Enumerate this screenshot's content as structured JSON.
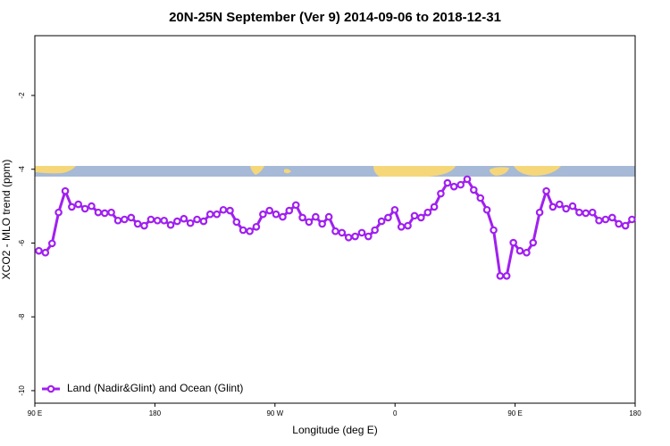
{
  "chart_data": {
    "type": "line",
    "title": "20N-25N September (Ver 9)   2014-09-06 to 2018-12-31",
    "x_label": "Longitude (deg E)",
    "y_label": "XCO2 - MLO trend (ppm)",
    "xlim": [
      90,
      540
    ],
    "ylim": [
      -10.34,
      -0.38
    ],
    "xticks": [
      {
        "value": 90,
        "label": "90 E"
      },
      180,
      {
        "value": 270,
        "label": "90 W"
      },
      {
        "value": 360,
        "label": "0"
      },
      {
        "value": 450,
        "label": "90 E"
      },
      {
        "value": 540,
        "label": "180"
      }
    ],
    "yticks": [
      -10,
      -8,
      -6,
      -4,
      -2
    ],
    "legend": "bottom-left",
    "x": [
      93,
      97.9,
      102.9,
      107.8,
      112.8,
      117.7,
      122.6,
      127.6,
      132.5,
      137.5,
      142.4,
      147.3,
      152.3,
      157.2,
      162.2,
      167.1,
      172,
      177,
      181.9,
      186.9,
      191.8,
      196.7,
      201.7,
      206.6,
      211.6,
      216.5,
      221.4,
      226.4,
      231.3,
      236.3,
      241.2,
      246.1,
      251.1,
      256,
      261,
      265.9,
      270.8,
      275.8,
      280.7,
      285.7,
      290.6,
      295.5,
      300.5,
      305.4,
      310.4,
      315.3,
      320.2,
      325.2,
      330.1,
      335.1,
      340,
      344.9,
      349.9,
      354.8,
      359.8,
      364.7,
      369.6,
      374.6,
      379.5,
      384.5,
      389.4,
      394.3,
      399.3,
      404.2,
      409.2,
      414.1,
      419,
      424,
      428.9,
      433.9,
      438.8,
      443.7,
      448.7,
      453.6,
      458.6,
      463.5,
      468.4,
      473.4,
      478.3,
      483.3,
      488.2,
      493.1,
      498.1,
      503,
      508,
      512.9,
      517.8,
      522.8,
      527.7,
      532.7,
      537.6
    ],
    "series": [
      {
        "name": "Land (Nadir&Glint) and Ocean (Glint)",
        "color": "#a020f0",
        "values": [
          -6.21,
          -6.26,
          -6.01,
          -5.17,
          -4.59,
          -5.02,
          -4.95,
          -5.07,
          -5.0,
          -5.17,
          -5.19,
          -5.17,
          -5.39,
          -5.36,
          -5.31,
          -5.48,
          -5.53,
          -5.36,
          -5.39,
          -5.39,
          -5.51,
          -5.41,
          -5.34,
          -5.46,
          -5.36,
          -5.41,
          -5.22,
          -5.22,
          -5.1,
          -5.12,
          -5.43,
          -5.65,
          -5.68,
          -5.56,
          -5.22,
          -5.12,
          -5.22,
          -5.29,
          -5.12,
          -4.97,
          -5.31,
          -5.43,
          -5.29,
          -5.48,
          -5.29,
          -5.68,
          -5.72,
          -5.85,
          -5.82,
          -5.72,
          -5.82,
          -5.65,
          -5.41,
          -5.31,
          -5.1,
          -5.56,
          -5.53,
          -5.26,
          -5.31,
          -5.17,
          -5.02,
          -4.66,
          -4.37,
          -4.47,
          -4.42,
          -4.27,
          -4.56,
          -4.78,
          -5.1,
          -5.65,
          -6.89,
          -6.89,
          -5.99,
          -6.21,
          -6.26,
          -5.99,
          -5.17,
          -4.59,
          -5.02,
          -4.95,
          -5.07,
          -5.0,
          -5.17,
          -5.19,
          -5.17,
          -5.39,
          -5.36,
          -5.31,
          -5.48,
          -5.53,
          -5.36
        ]
      }
    ]
  }
}
